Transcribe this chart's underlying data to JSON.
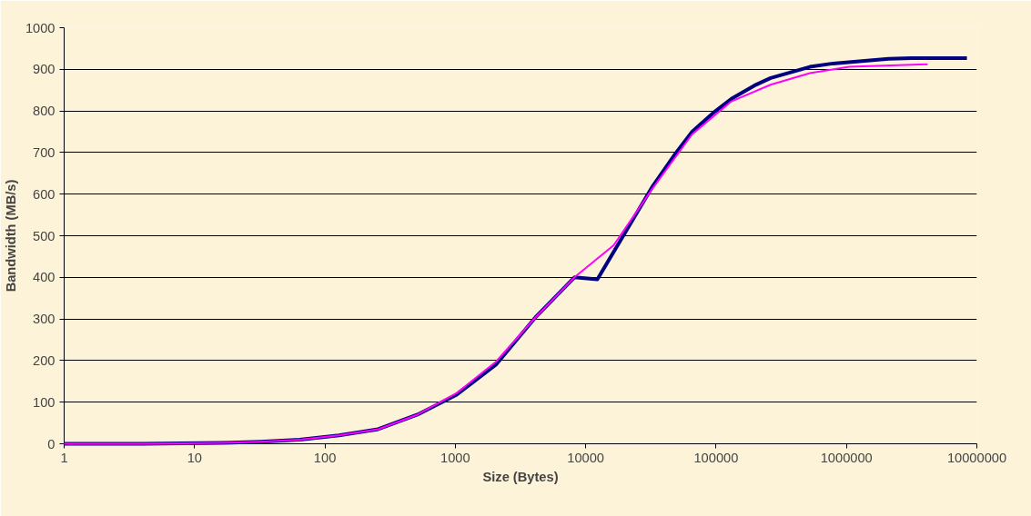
{
  "chart_data": {
    "type": "line",
    "xlabel": "Size (Bytes)",
    "ylabel": "Bandwidth (MB/s)",
    "log": "x",
    "xlim": [
      1,
      10000000
    ],
    "xticks": [
      1,
      10,
      100,
      1000,
      10000,
      100000,
      1000000,
      10000000
    ],
    "ylim": [
      0,
      1000
    ],
    "yticks": [
      0,
      100,
      200,
      300,
      400,
      500,
      600,
      700,
      800,
      900,
      1000
    ],
    "grid": "y",
    "series": [
      {
        "color": "#000080",
        "x": [
          1,
          2,
          4,
          8,
          16,
          32,
          64,
          128,
          256,
          512,
          1024,
          1536,
          2048,
          4096,
          8192,
          12288,
          32768,
          49152,
          65536,
          98304,
          131072,
          196608,
          262144,
          524288,
          786432,
          2097152,
          3145728,
          8388608
        ],
        "values": [
          0,
          0,
          0,
          1,
          2,
          5,
          10,
          20,
          35,
          70,
          118,
          160,
          190,
          303,
          400,
          395,
          620,
          699,
          750,
          799,
          829,
          861,
          879,
          906,
          914,
          925,
          927,
          927
        ]
      },
      {
        "color": "#ff00ff",
        "x": [
          1,
          2,
          4,
          8,
          16,
          32,
          64,
          128,
          256,
          512,
          1024,
          2048,
          4096,
          8192,
          16384,
          32768,
          65536,
          131072,
          262144,
          524288,
          1048576,
          4194304
        ],
        "values": [
          0,
          0,
          0,
          1,
          2,
          5,
          10,
          20,
          35,
          70,
          122,
          197,
          303,
          400,
          477,
          615,
          744,
          823,
          863,
          891,
          906,
          912
        ]
      }
    ]
  }
}
